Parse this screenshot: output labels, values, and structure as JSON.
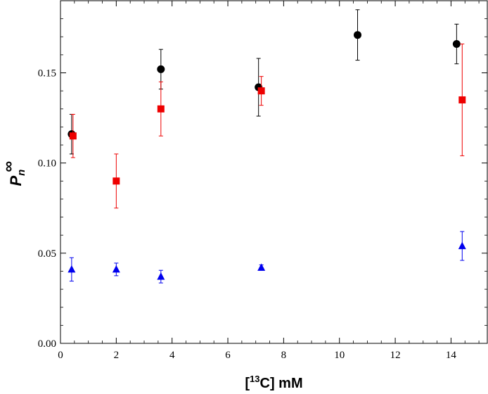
{
  "chart_data": {
    "type": "scatter",
    "title": "",
    "xlabel": {
      "prefix": "[",
      "sup": "13",
      "suffix": "C] mM"
    },
    "ylabel": {
      "main": "P",
      "sub": "n",
      "sup": "∞"
    },
    "xlim": [
      0,
      15.3
    ],
    "ylim": [
      0,
      0.19
    ],
    "xticks": [
      0,
      2,
      4,
      6,
      8,
      10,
      12,
      14
    ],
    "xtick_labels": [
      "0",
      "2",
      "4",
      "6",
      "8",
      "10",
      "12",
      "14"
    ],
    "yticks": [
      0,
      0.05,
      0.1,
      0.15
    ],
    "ytick_labels": [
      "0.00",
      "0.05",
      "0.10",
      "0.15"
    ],
    "grid": false,
    "legend": "none",
    "series": [
      {
        "name": "black circles",
        "marker": "circle",
        "color": "#000000",
        "points": [
          {
            "x": 0.4,
            "y": 0.116,
            "err": 0.011
          },
          {
            "x": 3.6,
            "y": 0.152,
            "err": 0.011
          },
          {
            "x": 7.1,
            "y": 0.142,
            "err": 0.016
          },
          {
            "x": 10.65,
            "y": 0.171,
            "err": 0.014
          },
          {
            "x": 14.2,
            "y": 0.166,
            "err": 0.011
          }
        ]
      },
      {
        "name": "red squares",
        "marker": "square",
        "color": "#ee0000",
        "points": [
          {
            "x": 0.45,
            "y": 0.115,
            "err": 0.012
          },
          {
            "x": 2.0,
            "y": 0.09,
            "err": 0.015
          },
          {
            "x": 3.6,
            "y": 0.13,
            "err": 0.015
          },
          {
            "x": 7.2,
            "y": 0.14,
            "err": 0.008
          },
          {
            "x": 14.4,
            "y": 0.135,
            "err": 0.031
          }
        ]
      },
      {
        "name": "blue triangles",
        "marker": "triangle",
        "color": "#0000ee",
        "points": [
          {
            "x": 0.4,
            "y": 0.041,
            "err": 0.0065
          },
          {
            "x": 2.0,
            "y": 0.041,
            "err": 0.0035
          },
          {
            "x": 3.6,
            "y": 0.037,
            "err": 0.0035
          },
          {
            "x": 7.2,
            "y": 0.042,
            "err": 0.0015
          },
          {
            "x": 14.4,
            "y": 0.054,
            "err": 0.008
          }
        ]
      }
    ]
  }
}
